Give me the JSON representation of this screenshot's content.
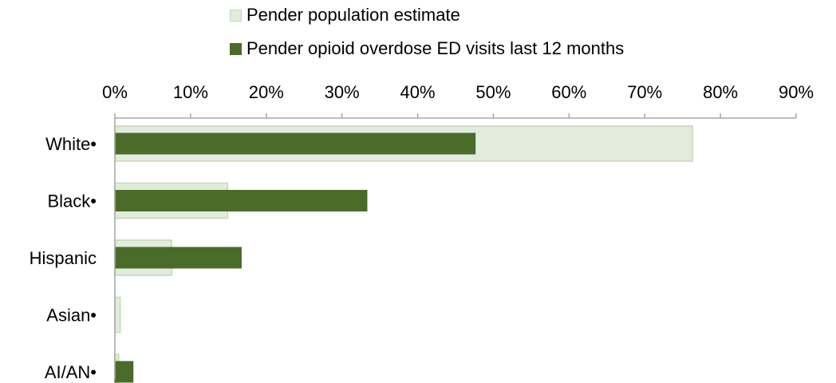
{
  "chart_data": {
    "type": "bar",
    "orientation": "horizontal",
    "categories": [
      "White•",
      "Black•",
      "Hispanic",
      "Asian•",
      "AI/AN•"
    ],
    "series": [
      {
        "name": "Pender population estimate",
        "color": "#e2ecdc",
        "stroke": "#c4d9b3",
        "values": [
          76.3,
          14.9,
          7.5,
          0.7,
          0.5
        ]
      },
      {
        "name": "Pender opioid overdose ED visits last 12 months",
        "color": "#4a6b2a",
        "stroke": "#4a6b2a",
        "values": [
          47.6,
          33.3,
          16.7,
          0,
          2.4
        ]
      }
    ],
    "xaxis": {
      "ticks": [
        0,
        10,
        20,
        30,
        40,
        50,
        60,
        70,
        80,
        90
      ],
      "tick_labels": [
        "0%",
        "10%",
        "20%",
        "30%",
        "40%",
        "50%",
        "60%",
        "70%",
        "80%",
        "90%"
      ],
      "range": [
        0,
        90
      ],
      "position": "top"
    },
    "legend_placement": "top",
    "grid": false,
    "axis_color": "#a6a6a6"
  }
}
